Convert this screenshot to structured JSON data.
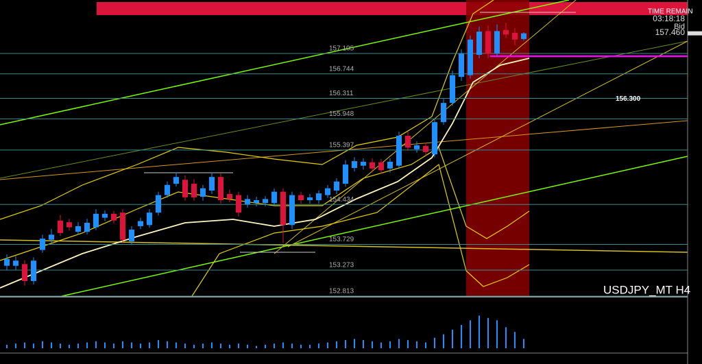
{
  "chart_data": {
    "type": "candlestick",
    "symbol": "USDJPY_MT H4",
    "time_label": "TIME REMAIN",
    "time": "03:18:18",
    "bid_title": "Bid",
    "bid": {
      "value": 157.46,
      "label": "157.460"
    },
    "up_color": "#1e90ff",
    "down_color": "#dc143c",
    "ylim": [
      152.813,
      158.05
    ],
    "levels": [
      157.105,
      156.744,
      156.311,
      155.948,
      155.397,
      154.434,
      153.729,
      153.273,
      152.813
    ],
    "side_level": {
      "value": 156.3,
      "label": "156.300"
    },
    "open": [
      153.35,
      153.35,
      153.38,
      153.08,
      153.63,
      153.81,
      154.15,
      154.12,
      153.95,
      153.95,
      154.03,
      154.2,
      154.27,
      154.29,
      153.78,
      154.05,
      154.07,
      154.29,
      154.6,
      154.8,
      154.87,
      154.8,
      154.57,
      154.68,
      154.92,
      154.62,
      154.6,
      154.44,
      154.46,
      154.46,
      154.46,
      154.66,
      154.07,
      154.6,
      154.51,
      154.51,
      154.6,
      154.68,
      154.8,
      155.08,
      155.12,
      155.18,
      155.18,
      155.07,
      155.12,
      155.65,
      155.41,
      155.47,
      155.32,
      155.89,
      156.23,
      156.69,
      156.72,
      157.08,
      157.5,
      157.1,
      157.52,
      157.47,
      157.36
    ],
    "high": [
      153.55,
      153.52,
      153.45,
      153.5,
      153.9,
      154.0,
      154.25,
      154.18,
      154.12,
      154.18,
      154.35,
      154.33,
      154.32,
      154.35,
      154.05,
      154.2,
      154.35,
      154.66,
      154.84,
      155.0,
      154.95,
      154.88,
      154.78,
      155.0,
      154.98,
      154.7,
      154.66,
      154.6,
      154.57,
      154.58,
      154.72,
      154.72,
      154.66,
      154.66,
      154.62,
      154.68,
      154.78,
      154.9,
      155.22,
      155.27,
      155.25,
      155.25,
      155.24,
      155.25,
      155.72,
      155.72,
      155.55,
      155.53,
      155.95,
      156.3,
      156.8,
      157.18,
      157.42,
      157.58,
      157.6,
      157.62,
      157.65,
      157.55,
      157.48
    ],
    "low": [
      153.27,
      153.28,
      153.0,
      153.02,
      153.58,
      153.75,
      153.88,
      153.97,
      153.9,
      153.9,
      153.98,
      154.14,
      154.1,
      153.75,
      153.72,
      154.0,
      154.02,
      154.24,
      154.55,
      154.75,
      154.5,
      154.5,
      154.5,
      154.62,
      154.45,
      154.47,
      154.22,
      154.38,
      154.4,
      154.4,
      154.4,
      153.75,
      154.0,
      154.45,
      154.45,
      154.45,
      154.55,
      154.62,
      154.75,
      155.02,
      155.05,
      155.0,
      154.98,
      155.0,
      155.06,
      155.38,
      155.35,
      155.3,
      155.27,
      155.84,
      156.18,
      156.62,
      156.66,
      157.02,
      157.02,
      157.05,
      157.38,
      157.25,
      157.33
    ],
    "close": [
      153.47,
      153.44,
      153.08,
      153.44,
      153.83,
      153.9,
      153.93,
      154.03,
      154.05,
      154.11,
      154.27,
      154.27,
      154.15,
      153.81,
      153.99,
      154.14,
      154.29,
      154.6,
      154.78,
      154.92,
      154.56,
      154.56,
      154.72,
      154.92,
      154.51,
      154.53,
      154.29,
      154.53,
      154.51,
      154.53,
      154.66,
      154.07,
      154.6,
      154.51,
      154.56,
      154.63,
      154.72,
      154.84,
      155.14,
      155.2,
      155.19,
      155.07,
      155.04,
      155.19,
      155.65,
      155.44,
      155.48,
      155.36,
      155.89,
      156.23,
      156.72,
      157.1,
      157.35,
      157.49,
      157.1,
      157.5,
      157.44,
      157.35,
      157.46
    ]
  },
  "indicator": {
    "type": "bar",
    "color": "#1e90ff",
    "ylim": [
      0,
      40
    ],
    "values": [
      3,
      4,
      5,
      4,
      6,
      5,
      4,
      3,
      4,
      5,
      6,
      5,
      4,
      6,
      5,
      4,
      5,
      7,
      6,
      5,
      4,
      3,
      4,
      5,
      4,
      3,
      4,
      3,
      2,
      3,
      4,
      5,
      4,
      3,
      3,
      4,
      5,
      6,
      7,
      8,
      7,
      6,
      5,
      6,
      8,
      7,
      6,
      5,
      9,
      12,
      16,
      20,
      24,
      28,
      26,
      24,
      18,
      14,
      8
    ]
  }
}
